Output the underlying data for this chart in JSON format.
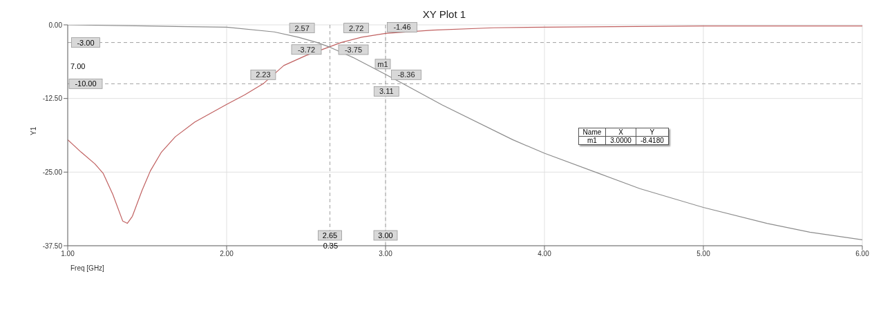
{
  "chart_data": {
    "type": "line",
    "title": "XY Plot 1",
    "xlabel": "Freq [GHz]",
    "ylabel": "Y1",
    "xlim": [
      1,
      6
    ],
    "xticks": [
      {
        "value": 1,
        "label": "1.00"
      },
      {
        "value": 2,
        "label": "2.00"
      },
      {
        "value": 3,
        "label": "3.00"
      },
      {
        "value": 4,
        "label": "4.00"
      },
      {
        "value": 5,
        "label": "5.00"
      },
      {
        "value": 6,
        "label": "6.00"
      }
    ],
    "ylim": [
      -37.5,
      0
    ],
    "yticks": [
      {
        "value": -37.5,
        "label": "-37.50"
      },
      {
        "value": -25,
        "label": "-25.00"
      },
      {
        "value": -12.5,
        "label": "-12.50"
      },
      {
        "value": 0,
        "label": "0.00"
      }
    ],
    "grid": true,
    "line_style": "solid",
    "marker": "none",
    "series": [
      {
        "color": "#c06060",
        "x": [
          1.0,
          1.084,
          1.171,
          1.223,
          1.284,
          1.346,
          1.375,
          1.407,
          1.468,
          1.52,
          1.59,
          1.677,
          1.8,
          2.0,
          2.113,
          2.23,
          2.36,
          2.5,
          2.65,
          2.72,
          2.85,
          3.0,
          3.3,
          3.68,
          4.0,
          5.0,
          6.0
        ],
        "values": [
          -19.5,
          -21.6,
          -23.6,
          -25.2,
          -28.8,
          -33.3,
          -33.7,
          -32.5,
          -28.1,
          -24.8,
          -21.6,
          -19.0,
          -16.5,
          -13.5,
          -11.9,
          -10.0,
          -6.9,
          -5.2,
          -3.7,
          -3.0,
          -2.1,
          -1.46,
          -0.9,
          -0.5,
          -0.4,
          -0.2,
          -0.2
        ]
      },
      {
        "color": "#8c8c8c",
        "x": [
          1.0,
          1.5,
          2.0,
          2.3,
          2.45,
          2.57,
          2.65,
          2.8,
          3.0,
          3.11,
          3.2,
          3.356,
          3.8,
          4.0,
          4.35,
          4.6,
          5.0,
          5.4,
          5.67,
          6.0
        ],
        "values": [
          0,
          -0.2,
          -0.4,
          -1.2,
          -2.1,
          -3.0,
          -3.8,
          -5.6,
          -8.4,
          -10.0,
          -11.3,
          -13.6,
          -19.5,
          -21.8,
          -25.3,
          -27.8,
          -31.0,
          -33.7,
          -35.2,
          -36.5
        ]
      }
    ],
    "ref_lines": [
      {
        "axis": "y",
        "value": -3,
        "label": "-3.00",
        "color": "#a0a0a0",
        "line_style": "dashed"
      },
      {
        "axis": "y",
        "value": -10,
        "label": "-10.00",
        "color": "#a0a0a0",
        "line_style": "dashed"
      },
      {
        "axis": "x",
        "value": 2.65,
        "label": "2.65",
        "color": "#a0a0a0",
        "line_style": "dashed"
      },
      {
        "axis": "x",
        "value": 3.0,
        "label": "3.00",
        "color": "#a0a0a0",
        "line_style": "dashed"
      }
    ],
    "annotations": [
      {
        "text": "2.57",
        "x": 2.57,
        "y": -3
      },
      {
        "text": "2.72",
        "x": 2.72,
        "y": -3
      },
      {
        "text": "-3.72",
        "x": 2.65,
        "y": -3.72
      },
      {
        "text": "-3.75",
        "x": 2.65,
        "y": -3.75
      },
      {
        "text": "2.23",
        "x": 2.23,
        "y": -10
      },
      {
        "text": "-1.46",
        "x": 3.0,
        "y": -1.46
      },
      {
        "text": "m1",
        "x": 3.0,
        "y": -8.418
      },
      {
        "text": "-8.36",
        "x": 3.0,
        "y": -8.36
      },
      {
        "text": "3.11",
        "x": 3.11,
        "y": -10
      },
      "7.00",
      "0.35",
      "Name",
      "X",
      "Y",
      "m1",
      "3.0000",
      "-8.4180"
    ]
  }
}
